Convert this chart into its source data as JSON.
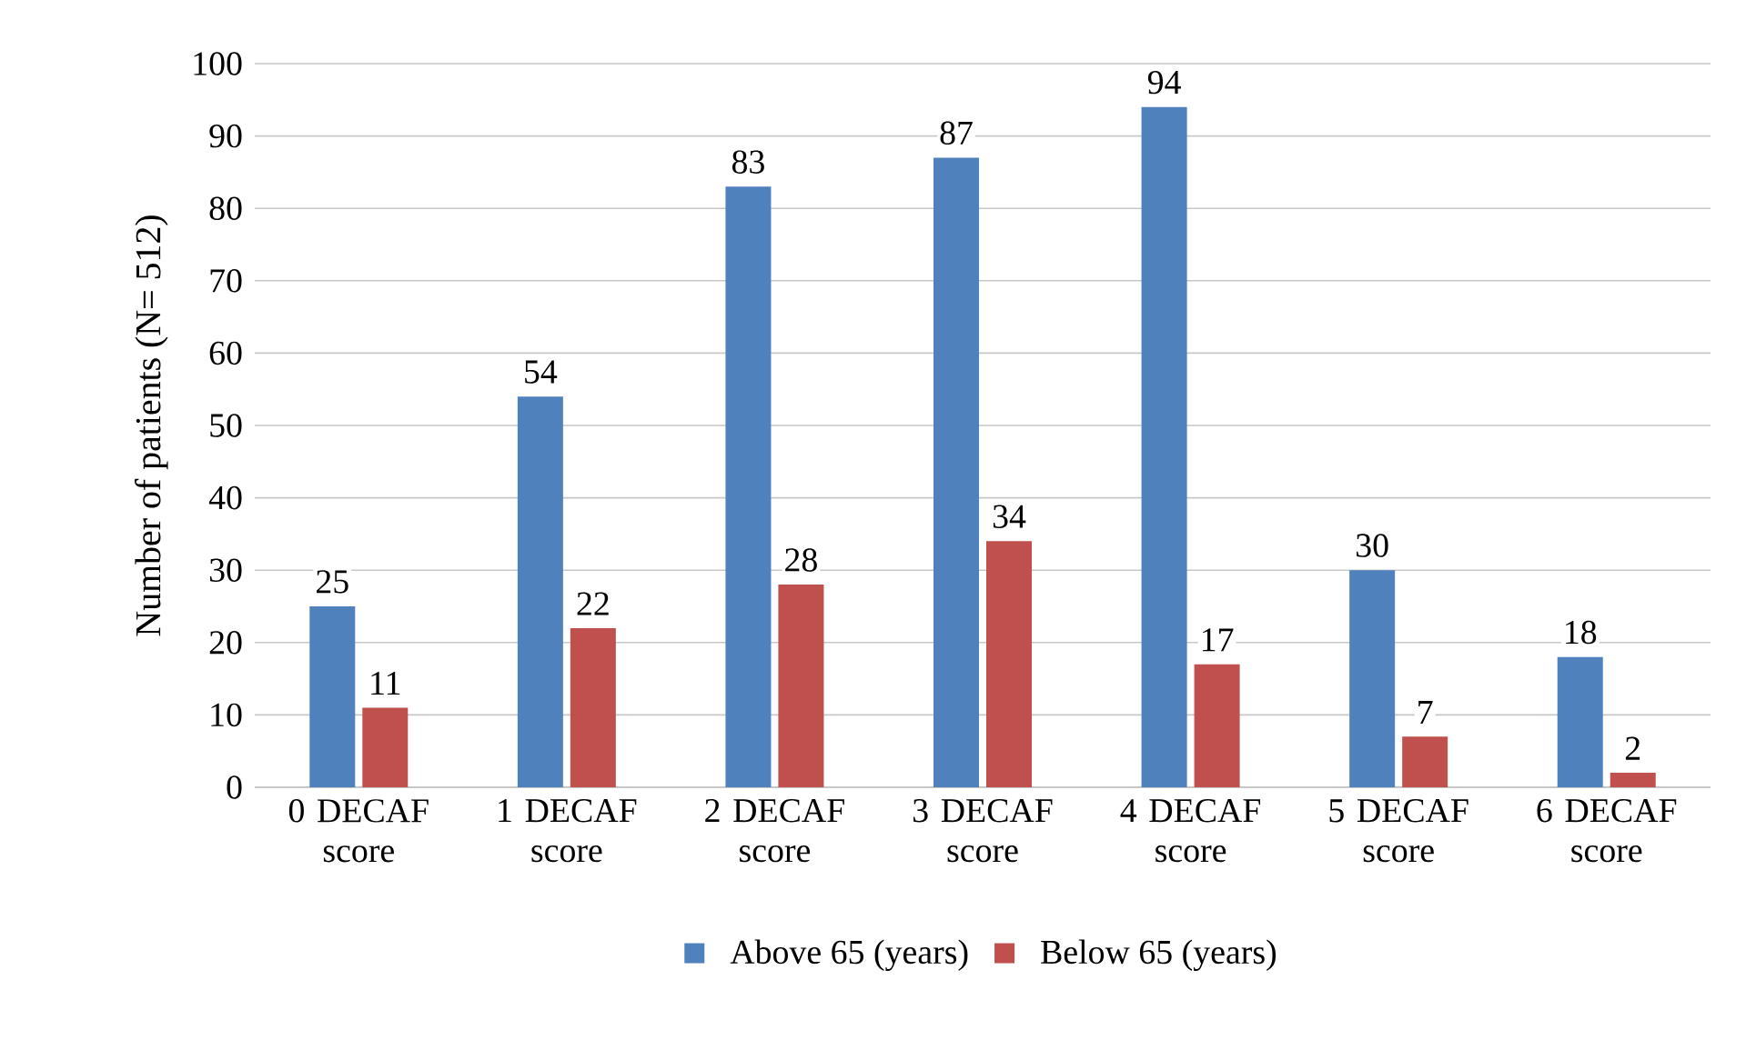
{
  "chart_data": {
    "type": "bar",
    "ylabel": "Number of patients (N= 512)",
    "categories": [
      "0 DECAF score",
      "1 DECAF score",
      "2 DECAF score",
      "3 DECAF score",
      "4 DECAF score",
      "5 DECAF score",
      "6 DECAF score"
    ],
    "series": [
      {
        "name": "Above 65 (years)",
        "color": "#4f81bd",
        "values": [
          25,
          54,
          83,
          87,
          94,
          30,
          18
        ]
      },
      {
        "name": "Below 65 (years)",
        "color": "#c0504d",
        "values": [
          11,
          22,
          28,
          34,
          17,
          7,
          2
        ]
      }
    ],
    "ylim": [
      0,
      100
    ],
    "yticks": [
      0,
      10,
      20,
      30,
      40,
      50,
      60,
      70,
      80,
      90,
      100
    ],
    "grid": "y",
    "legend": "bottom",
    "data_labels": true
  }
}
